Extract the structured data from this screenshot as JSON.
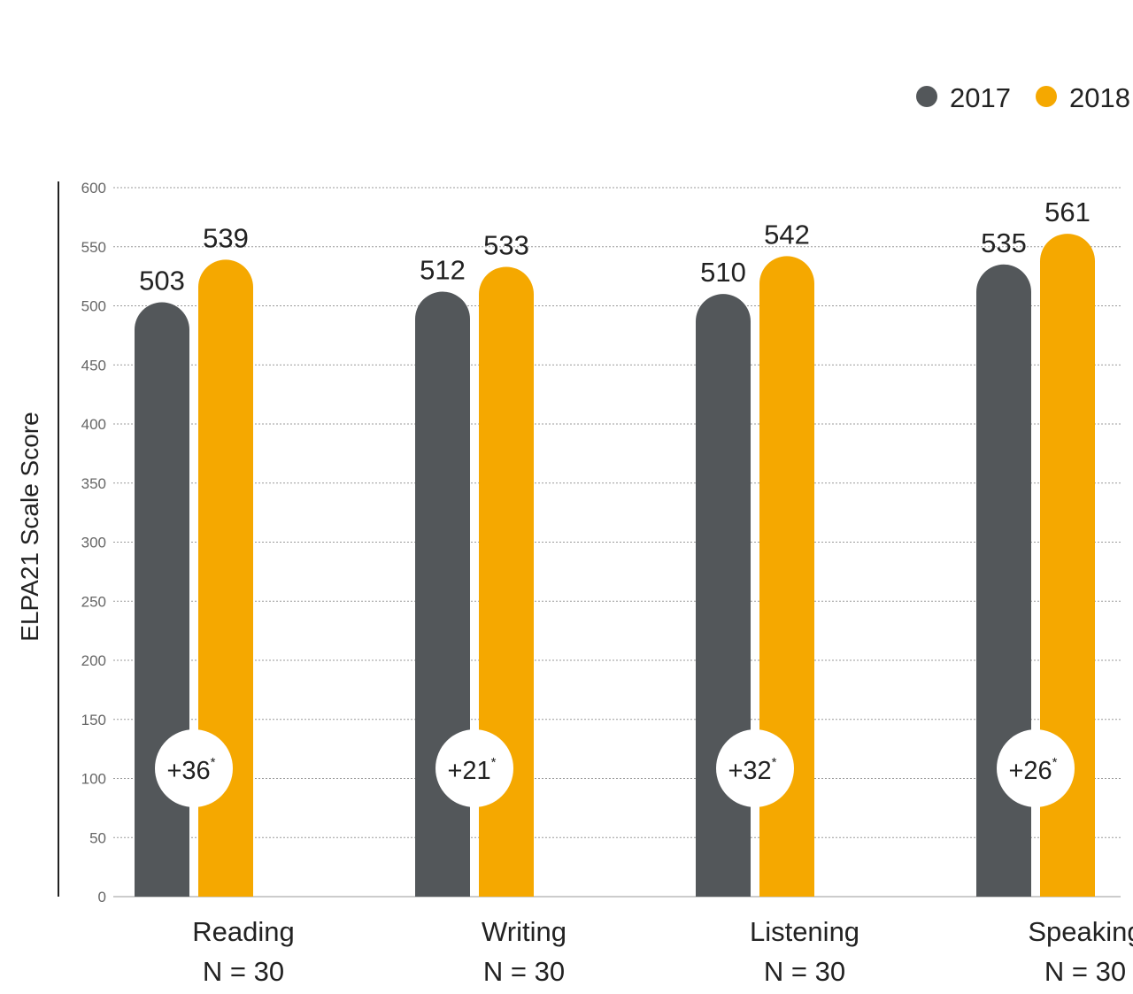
{
  "chart_data": {
    "type": "bar",
    "ylabel": "ELPA21 Scale Score",
    "ylim": [
      0,
      600
    ],
    "yticks": [
      0,
      50,
      100,
      150,
      200,
      250,
      300,
      350,
      400,
      450,
      500,
      550,
      600
    ],
    "grid": true,
    "legend_position": "top-right",
    "categories": [
      "Reading",
      "Writing",
      "Listening",
      "Speaking"
    ],
    "category_sublabels": [
      "N = 30",
      "N = 30",
      "N = 30",
      "N = 30"
    ],
    "series": [
      {
        "name": "2017",
        "color": "#53575a",
        "values": [
          503,
          512,
          510,
          535
        ]
      },
      {
        "name": "2018",
        "color": "#f5a800",
        "values": [
          539,
          533,
          542,
          561
        ]
      }
    ],
    "differences": [
      "+36",
      "+21",
      "+32",
      "+26"
    ],
    "difference_marker": "*"
  }
}
